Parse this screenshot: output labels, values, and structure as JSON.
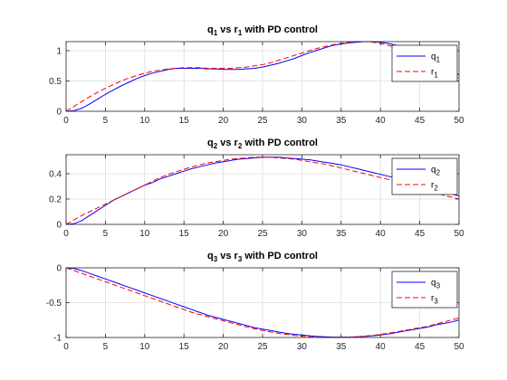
{
  "colors": {
    "actual": "#0000ff",
    "reference": "#ff0000",
    "axis": "#262626",
    "grid": "#dcdcdc"
  },
  "chart_data": [
    {
      "type": "line",
      "title": {
        "main": "q",
        "sub1": "1",
        "mid": " vs r",
        "sub2": "1",
        "tail": " with PD control"
      },
      "xlim": [
        0,
        50
      ],
      "ylim": [
        0,
        1.15
      ],
      "xticks": [
        0,
        5,
        10,
        15,
        20,
        25,
        30,
        35,
        40,
        45,
        50
      ],
      "yticks": [
        0,
        0.5,
        1
      ],
      "ytick_labels": [
        "0",
        "0.5",
        "1"
      ],
      "grid": true,
      "legend_position": "top-right",
      "series": [
        {
          "name": "q",
          "sub": "1",
          "style": "solid",
          "color": "#0000ff",
          "x": [
            0,
            1,
            2,
            3,
            4,
            5,
            6,
            7,
            8,
            9,
            10,
            11,
            12,
            13,
            14,
            15,
            16,
            17,
            18,
            19,
            20,
            21,
            22,
            23,
            24,
            25,
            26,
            27,
            28,
            29,
            30,
            31,
            32,
            33,
            34,
            35,
            36,
            37,
            38,
            39,
            40,
            41,
            42,
            43,
            44,
            45,
            46,
            47,
            48,
            49,
            50
          ],
          "y": [
            0.0,
            0.01,
            0.05,
            0.12,
            0.2,
            0.28,
            0.35,
            0.42,
            0.48,
            0.54,
            0.59,
            0.63,
            0.66,
            0.69,
            0.71,
            0.71,
            0.71,
            0.71,
            0.7,
            0.7,
            0.69,
            0.69,
            0.69,
            0.7,
            0.71,
            0.73,
            0.76,
            0.79,
            0.83,
            0.87,
            0.92,
            0.97,
            1.01,
            1.05,
            1.09,
            1.11,
            1.13,
            1.14,
            1.15,
            1.15,
            1.14,
            1.12,
            1.09,
            1.05,
            1.0,
            0.95,
            0.89,
            0.82,
            0.75,
            0.68,
            0.6
          ]
        },
        {
          "name": "r",
          "sub": "1",
          "style": "dashed",
          "color": "#ff0000",
          "x": [
            0,
            1,
            2,
            3,
            4,
            5,
            6,
            7,
            8,
            9,
            10,
            11,
            12,
            13,
            14,
            15,
            16,
            17,
            18,
            19,
            20,
            21,
            22,
            23,
            24,
            25,
            26,
            27,
            28,
            29,
            30,
            31,
            32,
            33,
            34,
            35,
            36,
            37,
            38,
            39,
            40,
            41,
            42,
            43,
            44,
            45,
            46,
            47,
            48,
            49,
            50
          ],
          "y": [
            0.0,
            0.08,
            0.16,
            0.24,
            0.31,
            0.38,
            0.44,
            0.5,
            0.55,
            0.59,
            0.63,
            0.66,
            0.68,
            0.7,
            0.71,
            0.72,
            0.72,
            0.72,
            0.71,
            0.71,
            0.71,
            0.71,
            0.72,
            0.73,
            0.75,
            0.77,
            0.8,
            0.84,
            0.88,
            0.92,
            0.96,
            1.0,
            1.04,
            1.07,
            1.1,
            1.12,
            1.14,
            1.15,
            1.15,
            1.14,
            1.12,
            1.09,
            1.05,
            1.01,
            0.96,
            0.9,
            0.84,
            0.77,
            0.7,
            0.62,
            0.54
          ]
        }
      ]
    },
    {
      "type": "line",
      "title": {
        "main": "q",
        "sub1": "2",
        "mid": " vs r",
        "sub2": "2",
        "tail": " with PD control"
      },
      "xlim": [
        0,
        50
      ],
      "ylim": [
        0,
        0.55
      ],
      "xticks": [
        0,
        5,
        10,
        15,
        20,
        25,
        30,
        35,
        40,
        45,
        50
      ],
      "yticks": [
        0,
        0.2,
        0.4
      ],
      "ytick_labels": [
        "0",
        "0.2",
        "0.4"
      ],
      "grid": true,
      "legend_position": "top-right",
      "series": [
        {
          "name": "q",
          "sub": "2",
          "style": "solid",
          "color": "#0000ff",
          "x": [
            0,
            1,
            2,
            3,
            4,
            5,
            6,
            7,
            8,
            9,
            10,
            11,
            12,
            13,
            14,
            15,
            16,
            17,
            18,
            19,
            20,
            21,
            22,
            23,
            24,
            25,
            26,
            27,
            28,
            29,
            30,
            31,
            32,
            33,
            34,
            35,
            36,
            37,
            38,
            39,
            40,
            41,
            42,
            43,
            44,
            45,
            46,
            47,
            48,
            49,
            50
          ],
          "y": [
            0.0,
            0.005,
            0.03,
            0.07,
            0.11,
            0.15,
            0.19,
            0.22,
            0.25,
            0.28,
            0.31,
            0.33,
            0.36,
            0.38,
            0.4,
            0.42,
            0.44,
            0.455,
            0.47,
            0.485,
            0.495,
            0.505,
            0.515,
            0.52,
            0.525,
            0.53,
            0.53,
            0.53,
            0.525,
            0.52,
            0.515,
            0.51,
            0.5,
            0.49,
            0.48,
            0.47,
            0.455,
            0.44,
            0.425,
            0.41,
            0.395,
            0.38,
            0.365,
            0.35,
            0.33,
            0.315,
            0.295,
            0.275,
            0.26,
            0.24,
            0.225
          ]
        },
        {
          "name": "r",
          "sub": "2",
          "style": "dashed",
          "color": "#ff0000",
          "x": [
            0,
            1,
            2,
            3,
            4,
            5,
            6,
            7,
            8,
            9,
            10,
            11,
            12,
            13,
            14,
            15,
            16,
            17,
            18,
            19,
            20,
            21,
            22,
            23,
            24,
            25,
            26,
            27,
            28,
            29,
            30,
            31,
            32,
            33,
            34,
            35,
            36,
            37,
            38,
            39,
            40,
            41,
            42,
            43,
            44,
            45,
            46,
            47,
            48,
            49,
            50
          ],
          "y": [
            0.0,
            0.035,
            0.07,
            0.1,
            0.13,
            0.16,
            0.19,
            0.22,
            0.25,
            0.28,
            0.31,
            0.34,
            0.37,
            0.395,
            0.415,
            0.435,
            0.455,
            0.47,
            0.485,
            0.495,
            0.505,
            0.515,
            0.52,
            0.525,
            0.53,
            0.53,
            0.53,
            0.525,
            0.52,
            0.515,
            0.505,
            0.495,
            0.485,
            0.475,
            0.46,
            0.445,
            0.43,
            0.415,
            0.4,
            0.385,
            0.37,
            0.355,
            0.34,
            0.32,
            0.305,
            0.285,
            0.265,
            0.25,
            0.23,
            0.215,
            0.2
          ]
        }
      ]
    },
    {
      "type": "line",
      "title": {
        "main": "q",
        "sub1": "3",
        "mid": " vs r",
        "sub2": "3",
        "tail": " with PD control"
      },
      "xlim": [
        0,
        50
      ],
      "ylim": [
        -1,
        0
      ],
      "xticks": [
        0,
        5,
        10,
        15,
        20,
        25,
        30,
        35,
        40,
        45,
        50
      ],
      "yticks": [
        -1,
        -0.5,
        0
      ],
      "ytick_labels": [
        "-1",
        "-0.5",
        "0"
      ],
      "grid": true,
      "legend_position": "top-right",
      "series": [
        {
          "name": "q",
          "sub": "3",
          "style": "solid",
          "color": "#0000ff",
          "x": [
            0,
            1,
            2,
            3,
            4,
            5,
            6,
            7,
            8,
            9,
            10,
            11,
            12,
            13,
            14,
            15,
            16,
            17,
            18,
            19,
            20,
            21,
            22,
            23,
            24,
            25,
            26,
            27,
            28,
            29,
            30,
            31,
            32,
            33,
            34,
            35,
            36,
            37,
            38,
            39,
            40,
            41,
            42,
            43,
            44,
            45,
            46,
            47,
            48,
            49,
            50
          ],
          "y": [
            0.0,
            -0.01,
            -0.04,
            -0.08,
            -0.12,
            -0.16,
            -0.2,
            -0.24,
            -0.28,
            -0.32,
            -0.36,
            -0.4,
            -0.44,
            -0.48,
            -0.52,
            -0.56,
            -0.6,
            -0.64,
            -0.68,
            -0.71,
            -0.74,
            -0.77,
            -0.8,
            -0.83,
            -0.86,
            -0.88,
            -0.9,
            -0.92,
            -0.94,
            -0.955,
            -0.965,
            -0.975,
            -0.985,
            -0.99,
            -0.995,
            -0.995,
            -0.995,
            -0.99,
            -0.985,
            -0.975,
            -0.965,
            -0.95,
            -0.93,
            -0.91,
            -0.89,
            -0.87,
            -0.85,
            -0.82,
            -0.8,
            -0.78,
            -0.75
          ]
        },
        {
          "name": "r",
          "sub": "3",
          "style": "dashed",
          "color": "#ff0000",
          "x": [
            0,
            1,
            2,
            3,
            4,
            5,
            6,
            7,
            8,
            9,
            10,
            11,
            12,
            13,
            14,
            15,
            16,
            17,
            18,
            19,
            20,
            21,
            22,
            23,
            24,
            25,
            26,
            27,
            28,
            29,
            30,
            31,
            32,
            33,
            34,
            35,
            36,
            37,
            38,
            39,
            40,
            41,
            42,
            43,
            44,
            45,
            46,
            47,
            48,
            49,
            50
          ],
          "y": [
            0.0,
            -0.04,
            -0.08,
            -0.12,
            -0.16,
            -0.2,
            -0.24,
            -0.28,
            -0.32,
            -0.36,
            -0.4,
            -0.44,
            -0.48,
            -0.52,
            -0.56,
            -0.6,
            -0.64,
            -0.67,
            -0.7,
            -0.73,
            -0.76,
            -0.79,
            -0.82,
            -0.85,
            -0.875,
            -0.9,
            -0.92,
            -0.94,
            -0.955,
            -0.97,
            -0.98,
            -0.99,
            -0.995,
            -1.0,
            -1.0,
            -1.0,
            -0.995,
            -0.99,
            -0.98,
            -0.97,
            -0.955,
            -0.94,
            -0.92,
            -0.9,
            -0.88,
            -0.86,
            -0.84,
            -0.81,
            -0.78,
            -0.75,
            -0.72
          ]
        }
      ]
    }
  ]
}
